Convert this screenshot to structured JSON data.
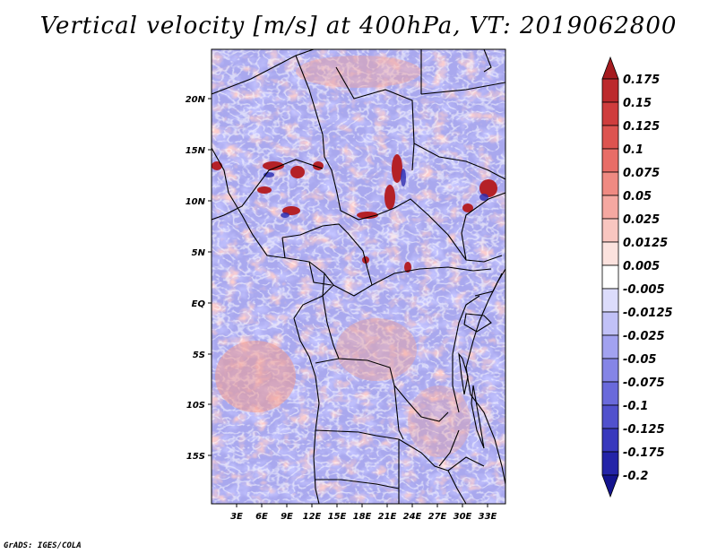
{
  "title": "Vertical velocity [m/s] at 400hPa, VT: 2019062800",
  "credit": "GrADS: IGES/COLA",
  "map": {
    "lon_range": [
      0,
      35
    ],
    "lat_range": [
      -20,
      24.5
    ],
    "lon_ticks": [
      "3E",
      "6E",
      "9E",
      "12E",
      "15E",
      "18E",
      "21E",
      "24E",
      "27E",
      "30E",
      "33E"
    ],
    "lat_ticks": [
      "20N",
      "15N",
      "10N",
      "5N",
      "EQ",
      "5S",
      "10S",
      "15S"
    ],
    "field_description": "mottled updraft/downdraft pattern with strong red updraft cells near 10-13N"
  },
  "colorbar": {
    "labels": [
      "0.175",
      "0.15",
      "0.125",
      "0.1",
      "0.075",
      "0.05",
      "0.025",
      "0.0125",
      "0.005",
      "-0.005",
      "-0.0125",
      "-0.025",
      "-0.05",
      "-0.075",
      "-0.1",
      "-0.125",
      "-0.175",
      "-0.2"
    ],
    "colors": [
      "#a51b1f",
      "#bc2a2d",
      "#cf3d3d",
      "#dd5450",
      "#e86d67",
      "#ef8a82",
      "#f5a8a1",
      "#f9c6c0",
      "#fce2de",
      "#ffffff",
      "#dcdcfb",
      "#c1c1f7",
      "#a2a2f0",
      "#8585e6",
      "#6a6adb",
      "#5151cd",
      "#3838bd",
      "#2424a8",
      "#14148f"
    ]
  }
}
